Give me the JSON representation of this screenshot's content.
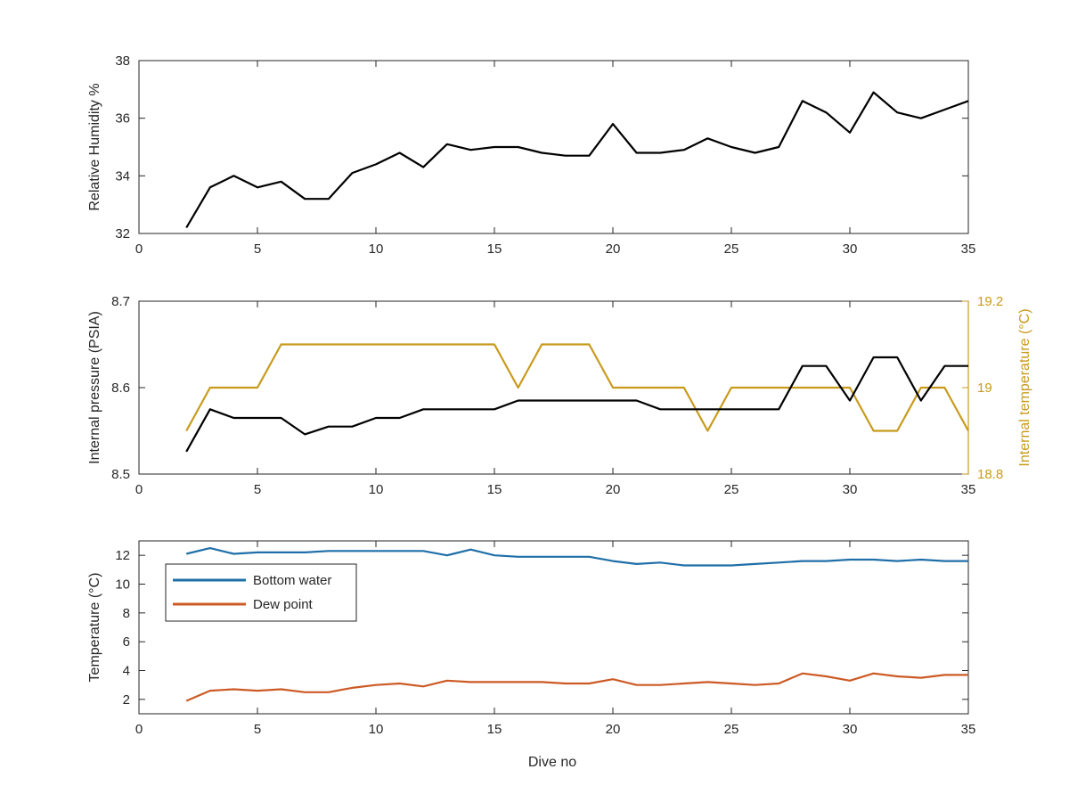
{
  "figure": {
    "xlabel": "Dive no"
  },
  "chart_data": [
    {
      "type": "line",
      "xlim": [
        0,
        35
      ],
      "ylim": [
        32,
        38
      ],
      "xticks": [
        0,
        5,
        10,
        15,
        20,
        25,
        30,
        35
      ],
      "yticks": [
        32,
        34,
        36,
        38
      ],
      "ylabel": "Relative Humidity %",
      "xlabel": "",
      "grid": false,
      "series": [
        {
          "color": "#000000",
          "x": [
            2,
            3,
            4,
            5,
            6,
            7,
            8,
            9,
            10,
            11,
            12,
            13,
            14,
            15,
            16,
            17,
            18,
            19,
            20,
            21,
            22,
            23,
            24,
            25,
            26,
            27,
            28,
            29,
            30,
            31,
            32,
            33,
            34,
            35
          ],
          "values": [
            32.2,
            33.6,
            34.0,
            33.6,
            33.8,
            33.2,
            33.2,
            34.1,
            34.4,
            34.8,
            34.3,
            35.1,
            34.9,
            35.0,
            35.0,
            34.8,
            34.7,
            34.7,
            35.8,
            34.8,
            34.8,
            34.9,
            35.3,
            35.0,
            34.8,
            35.0,
            36.6,
            36.2,
            35.5,
            36.9,
            36.2,
            36.0,
            36.3,
            36.6
          ]
        }
      ]
    },
    {
      "type": "line",
      "xlim": [
        0,
        35
      ],
      "ylim": [
        8.5,
        8.7
      ],
      "xticks": [
        0,
        5,
        10,
        15,
        20,
        25,
        30,
        35
      ],
      "yticks": [
        8.5,
        8.6,
        8.7
      ],
      "ylabel": "Internal pressure (PSIA)",
      "y2lim": [
        18.8,
        19.2
      ],
      "y2ticks": [
        18.8,
        19,
        19.2
      ],
      "y2label": "Internal temperature (°C)",
      "y2color": "#c89a1c",
      "xlabel": "",
      "grid": false,
      "series": [
        {
          "color": "#000000",
          "axis": "left",
          "x": [
            2,
            3,
            4,
            5,
            6,
            7,
            8,
            9,
            10,
            11,
            12,
            13,
            14,
            15,
            16,
            17,
            18,
            19,
            20,
            21,
            22,
            23,
            24,
            25,
            26,
            27,
            28,
            29,
            30,
            31,
            32,
            33,
            34,
            35
          ],
          "values": [
            8.526,
            8.575,
            8.565,
            8.565,
            8.565,
            8.546,
            8.555,
            8.555,
            8.565,
            8.565,
            8.575,
            8.575,
            8.575,
            8.575,
            8.585,
            8.585,
            8.585,
            8.585,
            8.585,
            8.585,
            8.575,
            8.575,
            8.575,
            8.575,
            8.575,
            8.575,
            8.625,
            8.625,
            8.585,
            8.635,
            8.635,
            8.585,
            8.625,
            8.625
          ]
        },
        {
          "color": "#c89a1c",
          "axis": "right",
          "x": [
            2,
            3,
            4,
            5,
            6,
            7,
            8,
            9,
            10,
            11,
            12,
            13,
            14,
            15,
            16,
            17,
            18,
            19,
            20,
            21,
            22,
            23,
            24,
            25,
            26,
            27,
            28,
            29,
            30,
            31,
            32,
            33,
            34,
            35
          ],
          "values": [
            18.9,
            19.0,
            19.0,
            19.0,
            19.1,
            19.1,
            19.1,
            19.1,
            19.1,
            19.1,
            19.1,
            19.1,
            19.1,
            19.1,
            19.0,
            19.1,
            19.1,
            19.1,
            19.0,
            19.0,
            19.0,
            19.0,
            18.9,
            19.0,
            19.0,
            19.0,
            19.0,
            19.0,
            19.0,
            18.9,
            18.9,
            19.0,
            19.0,
            18.9
          ]
        }
      ]
    },
    {
      "type": "line",
      "xlim": [
        0,
        35
      ],
      "ylim": [
        1,
        13
      ],
      "xticks": [
        0,
        5,
        10,
        15,
        20,
        25,
        30,
        35
      ],
      "yticks": [
        2,
        4,
        6,
        8,
        10,
        12
      ],
      "ylabel": "Temperature (°C)",
      "xlabel": "Dive no",
      "grid": false,
      "legend": "top-left",
      "series": [
        {
          "name": "Bottom water",
          "color": "#1f6fa8",
          "x": [
            2,
            3,
            4,
            5,
            6,
            7,
            8,
            9,
            10,
            11,
            12,
            13,
            14,
            15,
            16,
            17,
            18,
            19,
            20,
            21,
            22,
            23,
            24,
            25,
            26,
            27,
            28,
            29,
            30,
            31,
            32,
            33,
            34,
            35
          ],
          "values": [
            12.1,
            12.5,
            12.1,
            12.2,
            12.2,
            12.2,
            12.3,
            12.3,
            12.3,
            12.3,
            12.3,
            12.0,
            12.4,
            12.0,
            11.9,
            11.9,
            11.9,
            11.9,
            11.6,
            11.4,
            11.5,
            11.3,
            11.3,
            11.3,
            11.4,
            11.5,
            11.6,
            11.6,
            11.7,
            11.7,
            11.6,
            11.7,
            11.6,
            11.6
          ]
        },
        {
          "name": "Dew point",
          "color": "#cc5a25",
          "x": [
            2,
            3,
            4,
            5,
            6,
            7,
            8,
            9,
            10,
            11,
            12,
            13,
            14,
            15,
            16,
            17,
            18,
            19,
            20,
            21,
            22,
            23,
            24,
            25,
            26,
            27,
            28,
            29,
            30,
            31,
            32,
            33,
            34,
            35
          ],
          "values": [
            1.9,
            2.6,
            2.7,
            2.6,
            2.7,
            2.5,
            2.5,
            2.8,
            3.0,
            3.1,
            2.9,
            3.3,
            3.2,
            3.2,
            3.2,
            3.2,
            3.1,
            3.1,
            3.4,
            3.0,
            3.0,
            3.1,
            3.2,
            3.1,
            3.0,
            3.1,
            3.8,
            3.6,
            3.3,
            3.8,
            3.6,
            3.5,
            3.7,
            3.7
          ]
        }
      ]
    }
  ]
}
